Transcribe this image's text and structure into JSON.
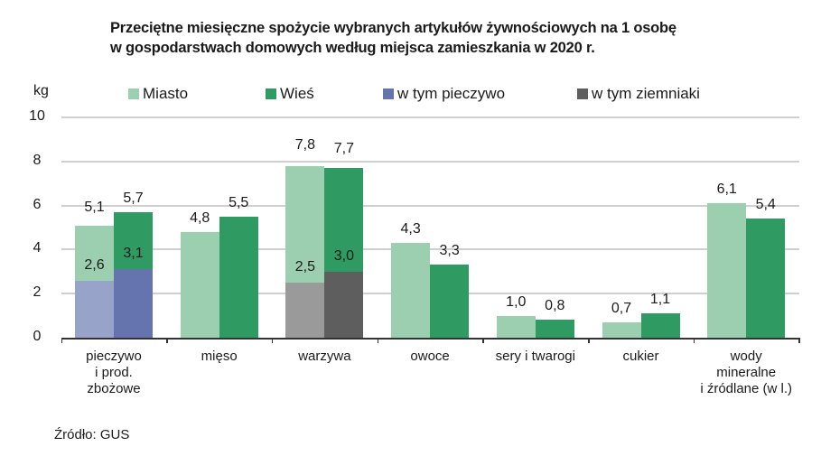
{
  "chart_data": {
    "type": "bar",
    "title": "Przeciętne miesięczne spożycie wybranych artykułów żywnościowych na 1 osobę w gospodarstwach domowych według miejsca zamieszkania w 2020 r.",
    "title_lines": [
      "Przeciętne miesięczne spożycie wybranych artykułów żywnościowych na 1 osobę",
      "w gospodarstwach domowych według miejsca zamieszkania w 2020 r."
    ],
    "ylabel": "kg",
    "xlabel": "",
    "ylim": [
      0,
      10
    ],
    "yticks": [
      "0",
      "2",
      "4",
      "6",
      "8",
      "10"
    ],
    "grid": true,
    "legend_position": "top",
    "categories": [
      "pieczywo i prod. zbożowe",
      "mięso",
      "warzywa",
      "owoce",
      "sery i twarogi",
      "cukier",
      "wody mineralne i źródlane (w l.)"
    ],
    "category_lines": [
      [
        "pieczywo",
        "i prod.",
        "zbożowe"
      ],
      [
        "mięso"
      ],
      [
        "warzywa"
      ],
      [
        "owoce"
      ],
      [
        "sery i twarogi"
      ],
      [
        "cukier"
      ],
      [
        "wody",
        "mineralne",
        "i źródlane (w l.)"
      ]
    ],
    "series": [
      {
        "name": "Miasto",
        "color": "#9bcfb0",
        "values": [
          5.1,
          4.8,
          7.8,
          4.3,
          1.0,
          0.7,
          6.1
        ],
        "labels": [
          "5,1",
          "4,8",
          "7,8",
          "4,3",
          "1,0",
          "0,7",
          "6,1"
        ]
      },
      {
        "name": "Wieś",
        "color": "#2f9b63",
        "values": [
          5.7,
          5.5,
          7.7,
          3.3,
          0.8,
          1.1,
          5.4
        ],
        "labels": [
          "5,7",
          "5,5",
          "7,7",
          "3,3",
          "0,8",
          "1,1",
          "5,4"
        ]
      }
    ],
    "sub_series": [
      {
        "name": "w tym pieczywo",
        "legend_color": "#6674ad",
        "category_index": 0,
        "miasto": {
          "value": 2.6,
          "label": "2,6",
          "color": "#98a3c9"
        },
        "wies": {
          "value": 3.1,
          "label": "3,1",
          "color": "#6674ad"
        }
      },
      {
        "name": "w tym ziemniaki",
        "legend_color": "#5e5e5e",
        "category_index": 2,
        "miasto": {
          "value": 2.5,
          "label": "2,5",
          "color": "#9a9a9a"
        },
        "wies": {
          "value": 3.0,
          "label": "3,0",
          "color": "#5e5e5e"
        }
      }
    ],
    "source": "Źródło: GUS"
  },
  "legend": [
    {
      "label": "Miasto",
      "color": "#9bcfb0"
    },
    {
      "label": "Wieś",
      "color": "#2f9b63"
    },
    {
      "label": "w tym pieczywo",
      "color": "#6674ad"
    },
    {
      "label": "w tym ziemniaki",
      "color": "#5e5e5e"
    }
  ]
}
